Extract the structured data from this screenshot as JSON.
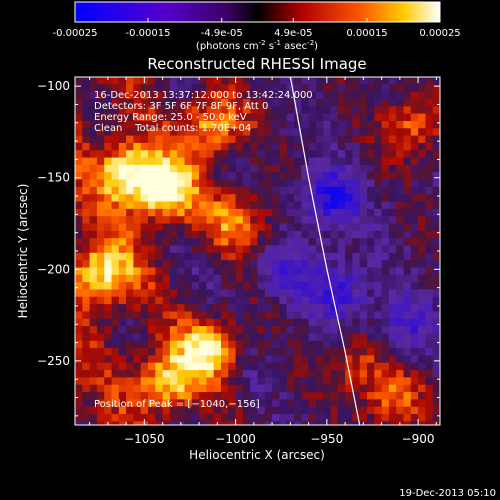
{
  "colorbar": {
    "ticks": [
      "-0.00025",
      "-0.00015",
      "-4.9e-05",
      "4.9e-05",
      "0.00015",
      "0.00025"
    ],
    "tick_values": [
      -0.00025,
      -0.00015,
      -4.9e-05,
      4.9e-05,
      0.00015,
      0.00025
    ],
    "unit_main": "(photons cm",
    "unit_exp1": "-2",
    "unit_mid": " s",
    "unit_exp2": "-1",
    "unit_mid2": " asec",
    "unit_exp3": "-2",
    "unit_close": ")",
    "range": [
      -0.00025,
      0.00025
    ]
  },
  "chart_data": {
    "type": "heatmap",
    "title": "Reconstructed RHESSI Image",
    "xlabel": "Heliocentric X (arcsec)",
    "ylabel": "Heliocentric Y (arcsec)",
    "xlim": [
      -1088,
      -888
    ],
    "ylim": [
      -285,
      -95
    ],
    "x_ticks": [
      -1050,
      -1000,
      -950,
      -900
    ],
    "x_tick_labels": [
      "−1050",
      "−1000",
      "−950",
      "−900"
    ],
    "y_ticks": [
      -100,
      -150,
      -200,
      -250
    ],
    "y_tick_labels": [
      "−100",
      "−150",
      "−200",
      "−250"
    ],
    "annotations": [
      "16-Dec-2013 13:37:12.000 to 13:42:24.000",
      "Detectors: 3F 5F 6F 7F 8F 9F, Att 0",
      "Energy Range: 25.0 - 50.0 keV",
      "Clean    Total counts: 1.70E+04"
    ],
    "peak_label": "Position of Peak = [−1040,−156]",
    "limb_curve": [
      [
        -970,
        -95
      ],
      [
        -960,
        -150
      ],
      [
        -950,
        -200
      ],
      [
        -940,
        -245
      ],
      [
        -932,
        -285
      ]
    ],
    "bright_sources": [
      {
        "x": -1075,
        "y": -200,
        "level": 0.9
      },
      {
        "x": -1060,
        "y": -145,
        "level": 1.0
      },
      {
        "x": -1040,
        "y": -156,
        "level": 1.0
      },
      {
        "x": -1015,
        "y": -120,
        "level": 0.85
      },
      {
        "x": -1040,
        "y": -260,
        "level": 0.9
      },
      {
        "x": -1015,
        "y": -240,
        "level": 0.95
      },
      {
        "x": -1000,
        "y": -170,
        "level": 0.7
      },
      {
        "x": -905,
        "y": -120,
        "level": 0.6
      },
      {
        "x": -915,
        "y": -270,
        "level": 0.6
      },
      {
        "x": -935,
        "y": -250,
        "level": 0.5
      }
    ],
    "dark_sources": [
      {
        "x": -950,
        "y": -160,
        "level": -0.7
      },
      {
        "x": -945,
        "y": -210,
        "level": -0.6
      },
      {
        "x": -910,
        "y": -230,
        "level": -0.5
      },
      {
        "x": -975,
        "y": -200,
        "level": -0.4
      }
    ]
  },
  "footer": {
    "timestamp": "19-Dec-2013 05:10"
  }
}
